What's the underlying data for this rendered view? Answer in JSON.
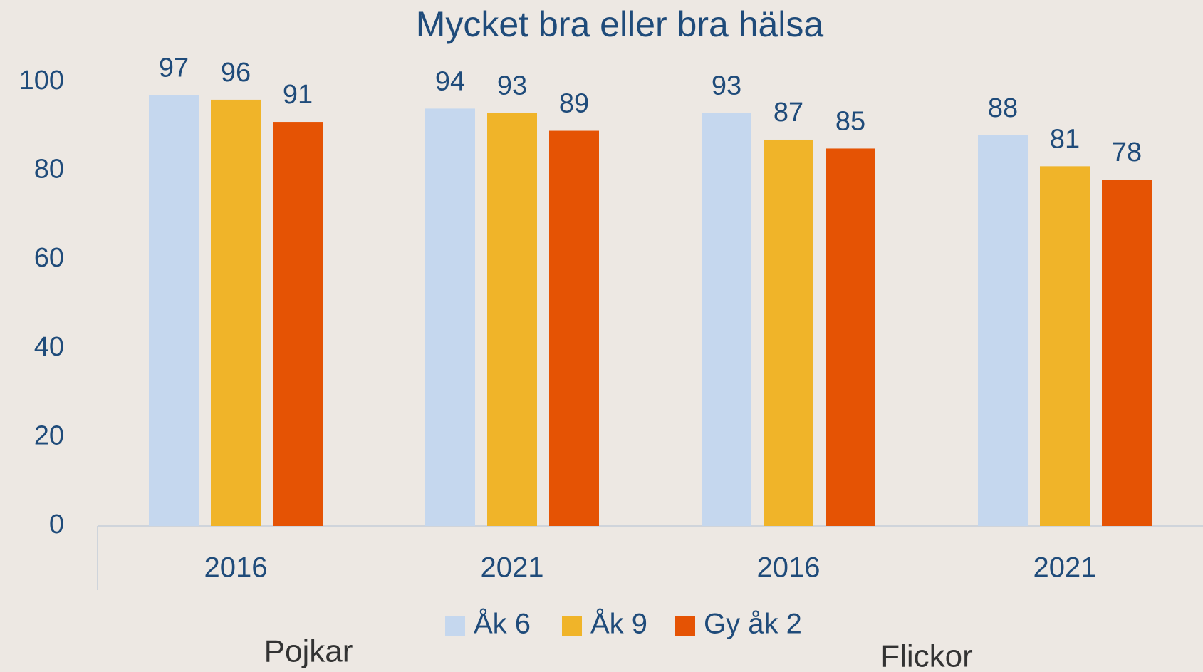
{
  "chart_data": {
    "type": "bar",
    "title": "Mycket bra eller bra hälsa",
    "categories": [
      "2016",
      "2021",
      "2016",
      "2021"
    ],
    "series": [
      {
        "name": "Åk 6",
        "color": "#c5d7ee",
        "values": [
          97,
          94,
          93,
          88
        ]
      },
      {
        "name": "Åk 9",
        "color": "#f0b429",
        "values": [
          96,
          93,
          87,
          81
        ]
      },
      {
        "name": "Gy åk 2",
        "color": "#e55304",
        "values": [
          91,
          89,
          85,
          78
        ]
      }
    ],
    "ylim": [
      0,
      100
    ],
    "yticks": [
      0,
      20,
      40,
      60,
      80,
      100
    ],
    "grid": false,
    "legend": "bottom",
    "annotations": [
      "Pojkar",
      "Flickor"
    ]
  }
}
